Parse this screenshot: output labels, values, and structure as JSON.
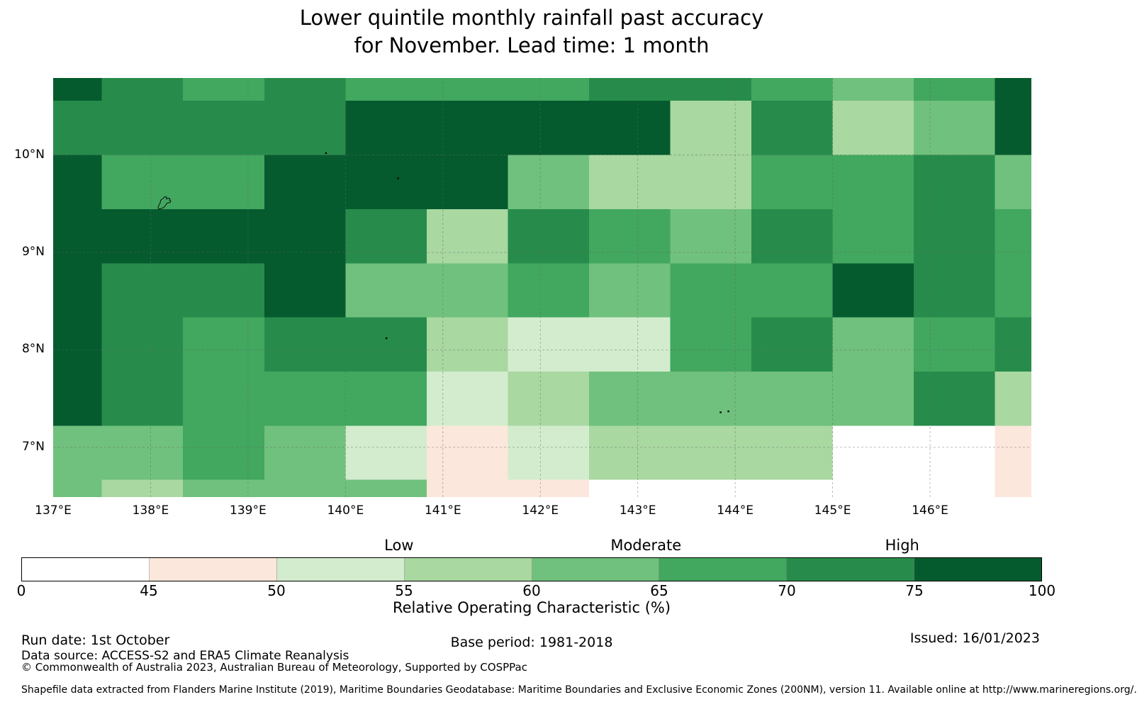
{
  "title": {
    "line1": "Lower quintile monthly rainfall past accuracy",
    "line2": "for November. Lead time: 1 month"
  },
  "footer": {
    "run_date": "Run date: 1st October",
    "base_period": "Base period: 1981-2018",
    "issued": "Issued: 16/01/2023",
    "data_source": "Data source: ACCESS-S2 and ERA5 Climate Reanalysis",
    "copyright": "© Commonwealth of Australia 2023, Australian Bureau of Meteorology, Supported by COSPPac",
    "shapefile_note": "Shapefile data extracted from Flanders Marine Institute (2019), Maritime Boundaries Geodatabase: Maritime Boundaries and Exclusive Economic Zones (200NM), version 11. Available online at http://www.marineregions.org/."
  },
  "chart_data": {
    "type": "heatmap",
    "title": "Lower quintile monthly rainfall past accuracy for November. Lead time: 1 month",
    "value_name": "Relative Operating Characteristic (%)",
    "lon_range": [
      137.0,
      147.04
    ],
    "lat_range": [
      6.49,
      10.79
    ],
    "lon_edges": [
      137.0,
      137.5,
      138.333,
      139.167,
      140.0,
      140.833,
      141.667,
      142.5,
      143.333,
      144.167,
      145.0,
      145.833,
      146.667,
      147.04
    ],
    "lat_edges": [
      10.79,
      10.556,
      10.0,
      9.444,
      8.889,
      8.333,
      7.778,
      7.222,
      6.667,
      6.49
    ],
    "bins": [
      {
        "range": "0-45",
        "color": "#ffffff"
      },
      {
        "range": "45-50",
        "color": "#fbe7db"
      },
      {
        "range": "50-55",
        "color": "#d3ecce"
      },
      {
        "range": "55-60",
        "color": "#a9d8a1"
      },
      {
        "range": "60-65",
        "color": "#70c17d"
      },
      {
        "range": "65-70",
        "color": "#42a75f"
      },
      {
        "range": "70-75",
        "color": "#278c4b"
      },
      {
        "range": "75-100",
        "color": "#055b2e"
      }
    ],
    "values": [
      [
        7,
        6,
        5,
        6,
        5,
        5,
        5,
        6,
        6,
        5,
        4,
        5,
        7
      ],
      [
        6,
        6,
        6,
        6,
        7,
        7,
        7,
        7,
        3,
        6,
        3,
        4,
        7
      ],
      [
        7,
        5,
        5,
        7,
        7,
        7,
        4,
        3,
        3,
        5,
        5,
        6,
        4
      ],
      [
        7,
        7,
        7,
        7,
        6,
        3,
        6,
        5,
        4,
        6,
        5,
        6,
        5
      ],
      [
        7,
        6,
        6,
        7,
        4,
        4,
        5,
        4,
        5,
        5,
        7,
        6,
        5
      ],
      [
        7,
        6,
        5,
        6,
        6,
        3,
        2,
        2,
        5,
        6,
        4,
        5,
        6
      ],
      [
        7,
        6,
        5,
        5,
        5,
        2,
        3,
        4,
        4,
        4,
        4,
        6,
        3
      ],
      [
        4,
        4,
        5,
        4,
        2,
        1,
        2,
        3,
        3,
        3,
        0,
        0,
        1
      ],
      [
        4,
        3,
        4,
        4,
        4,
        1,
        1,
        0,
        0,
        0,
        0,
        0,
        1
      ]
    ],
    "x_ticks": [
      {
        "label": "137°E",
        "lon": 137
      },
      {
        "label": "138°E",
        "lon": 138
      },
      {
        "label": "139°E",
        "lon": 139
      },
      {
        "label": "140°E",
        "lon": 140
      },
      {
        "label": "141°E",
        "lon": 141
      },
      {
        "label": "142°E",
        "lon": 142
      },
      {
        "label": "143°E",
        "lon": 143
      },
      {
        "label": "144°E",
        "lon": 144
      },
      {
        "label": "145°E",
        "lon": 145
      },
      {
        "label": "146°E",
        "lon": 146
      }
    ],
    "y_ticks": [
      {
        "label": "10°N",
        "lat": 10
      },
      {
        "label": "9°N",
        "lat": 9
      },
      {
        "label": "8°N",
        "lat": 8
      },
      {
        "label": "7°N",
        "lat": 7
      }
    ],
    "grid_lons": [
      138,
      139,
      140,
      141,
      142,
      143,
      144,
      145,
      146
    ],
    "grid_lats": [
      10,
      9,
      8,
      7
    ],
    "grid_on": true,
    "islands": [
      {
        "type": "outline",
        "name": "yap-island",
        "lon": 138.14,
        "lat": 9.52
      },
      {
        "type": "dot",
        "lon": 139.8,
        "lat": 10.02
      },
      {
        "type": "dot",
        "lon": 140.54,
        "lat": 9.76
      },
      {
        "type": "dot",
        "lon": 140.42,
        "lat": 8.12
      },
      {
        "type": "dot",
        "lon": 143.85,
        "lat": 7.36
      },
      {
        "type": "dot",
        "lon": 143.93,
        "lat": 7.37
      }
    ],
    "colorbar": {
      "ticks": [
        "0",
        "45",
        "50",
        "55",
        "60",
        "65",
        "70",
        "75",
        "100"
      ],
      "categories": [
        {
          "label": "Low",
          "pct": 37.0
        },
        {
          "label": "Moderate",
          "pct": 61.2
        },
        {
          "label": "High",
          "pct": 86.3
        }
      ],
      "axis_label": "Relative Operating Characteristic (%)",
      "position": "bottom"
    }
  }
}
